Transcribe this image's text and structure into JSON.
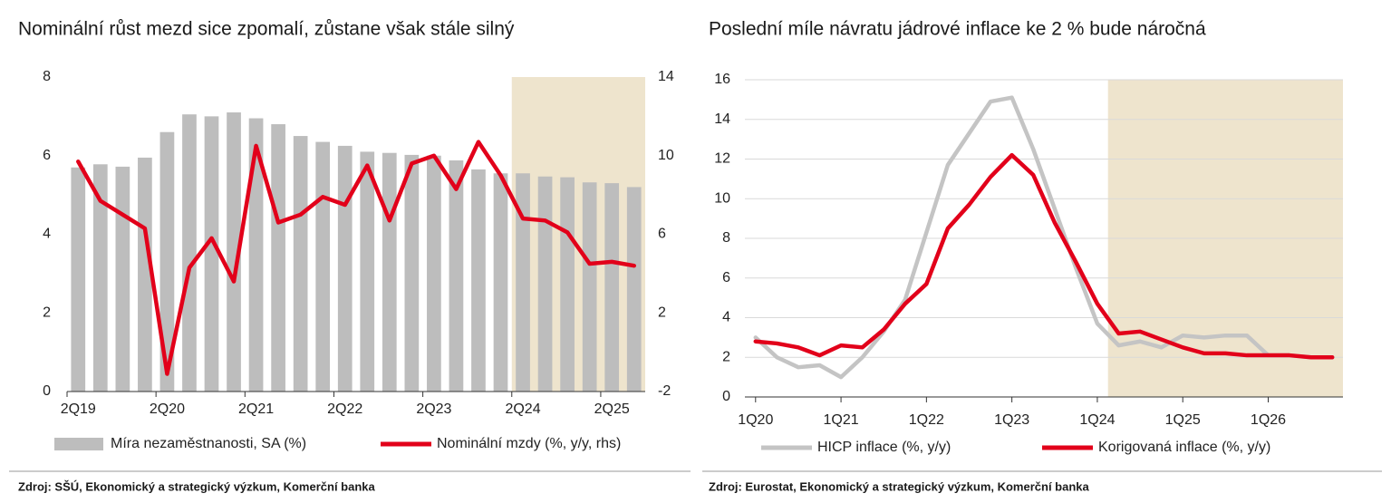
{
  "chart_data": [
    {
      "type": "combo",
      "title": "Nominální růst mezd sice zpomalí, zůstane však stále silný",
      "source": "Zdroj: SŠÚ, Ekonomický a strategický výzkum, Komerční banka",
      "categories": [
        "2Q19",
        null,
        null,
        null,
        "2Q20",
        null,
        null,
        null,
        "2Q21",
        null,
        null,
        null,
        "2Q22",
        null,
        null,
        null,
        "2Q23",
        null,
        null,
        null,
        "2Q24",
        null,
        null,
        null,
        "2Q25",
        null
      ],
      "series": [
        {
          "name": "Míra nezaměstnanosti, SA (%)",
          "type": "bar",
          "color": "#bdbdbd",
          "values": [
            5.7,
            5.78,
            5.72,
            5.95,
            6.6,
            7.05,
            7.0,
            7.1,
            6.95,
            6.8,
            6.5,
            6.35,
            6.25,
            6.1,
            6.07,
            6.02,
            6.0,
            5.88,
            5.65,
            5.55,
            5.55,
            5.47,
            5.45,
            5.32,
            5.3,
            5.2
          ]
        },
        {
          "name": "Nominální mzdy (%, y/y, rhs)",
          "type": "line",
          "axis": "y2",
          "color": "#e2001a",
          "values": [
            9.7,
            7.7,
            7.0,
            6.3,
            -1.1,
            4.3,
            5.8,
            3.6,
            10.5,
            6.6,
            7.0,
            7.9,
            7.5,
            9.5,
            6.7,
            9.6,
            10.0,
            8.3,
            10.7,
            9.0,
            6.8,
            6.7,
            6.1,
            4.5,
            4.6,
            4.4
          ]
        }
      ],
      "ylim": [
        0,
        8
      ],
      "yticks": [
        0,
        2,
        4,
        6,
        8
      ],
      "y2lim": [
        -2,
        14
      ],
      "y2ticks": [
        -2,
        2,
        6,
        10,
        14
      ],
      "grid": false,
      "shade_from": 20,
      "shade_color": "#eee4cd"
    },
    {
      "type": "line",
      "title": "Poslední míle návratu jádrové inflace ke 2 % bude náročná",
      "source": "Zdroj: Eurostat, Ekonomický a strategický výzkum, Komerční banka",
      "categories": [
        "1Q20",
        null,
        null,
        null,
        "1Q21",
        null,
        null,
        null,
        "1Q22",
        null,
        null,
        null,
        "1Q23",
        null,
        null,
        null,
        "1Q24",
        null,
        null,
        null,
        "1Q25",
        null,
        null,
        null,
        "1Q26",
        null,
        null,
        null
      ],
      "series": [
        {
          "name": "HICP inflace (%, y/y)",
          "color": "#c4c4c4",
          "values": [
            3.0,
            2.0,
            1.5,
            1.6,
            1.0,
            2.0,
            3.3,
            4.9,
            8.3,
            11.7,
            13.3,
            14.9,
            15.1,
            12.5,
            9.5,
            6.5,
            3.7,
            2.6,
            2.8,
            2.5,
            3.1,
            3.0,
            3.1,
            3.1,
            2.1,
            2.1,
            2.0,
            2.0
          ]
        },
        {
          "name": "Korigovaná inflace (%, y/y)",
          "color": "#e2001a",
          "values": [
            2.8,
            2.7,
            2.5,
            2.1,
            2.6,
            2.5,
            3.4,
            4.7,
            5.7,
            8.5,
            9.7,
            11.1,
            12.2,
            11.2,
            8.8,
            6.8,
            4.7,
            3.2,
            3.3,
            2.9,
            2.5,
            2.2,
            2.2,
            2.1,
            2.1,
            2.1,
            2.0,
            2.0
          ]
        }
      ],
      "ylim": [
        0,
        16
      ],
      "yticks": [
        0,
        2,
        4,
        6,
        8,
        10,
        12,
        14,
        16
      ],
      "grid": true,
      "shade_from": 17,
      "shade_color": "#eee4cd"
    }
  ]
}
